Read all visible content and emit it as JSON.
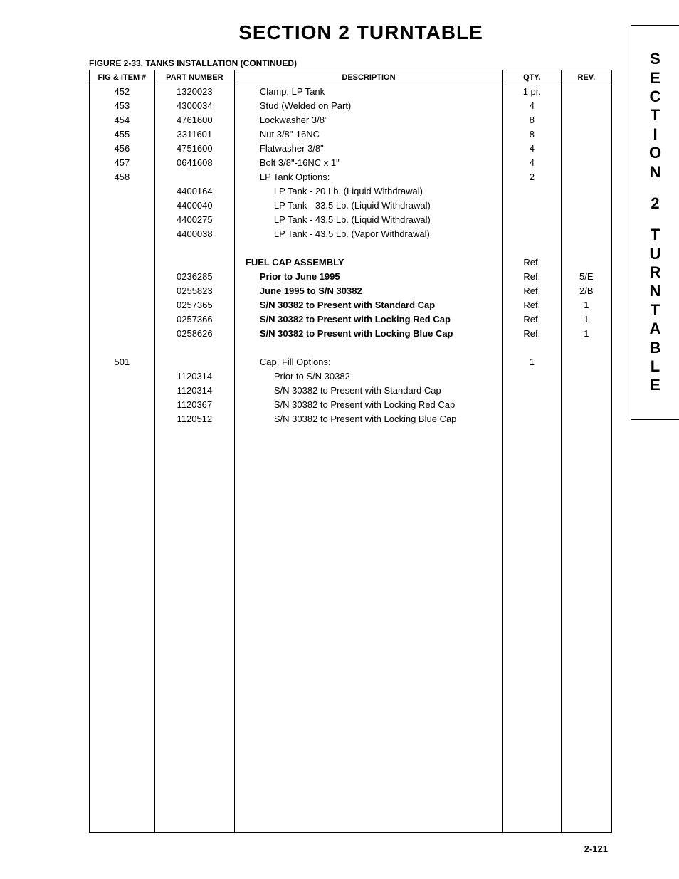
{
  "page": {
    "section_title": "SECTION 2   TURNTABLE",
    "figure_caption": "FIGURE 2-33.  TANKS INSTALLATION (CONTINUED)",
    "page_number": "2-121",
    "side_tab": [
      "S",
      "E",
      "C",
      "T",
      "I",
      "O",
      "N",
      "",
      "2",
      "",
      "T",
      "U",
      "R",
      "N",
      "T",
      "A",
      "B",
      "L",
      "E"
    ]
  },
  "table": {
    "headers": {
      "fig": "Fig & Item #",
      "part": "Part Number",
      "desc": "Description",
      "qty": "Qty.",
      "rev": "Rev."
    },
    "rows": [
      {
        "fig": "452",
        "part": "1320023",
        "desc": "Clamp, LP Tank",
        "indent": 1,
        "bold": false,
        "qty": "1 pr.",
        "rev": ""
      },
      {
        "fig": "453",
        "part": "4300034",
        "desc": "Stud (Welded on Part)",
        "indent": 1,
        "bold": false,
        "qty": "4",
        "rev": ""
      },
      {
        "fig": "454",
        "part": "4761600",
        "desc": "Lockwasher 3/8\"",
        "indent": 1,
        "bold": false,
        "qty": "8",
        "rev": ""
      },
      {
        "fig": "455",
        "part": "3311601",
        "desc": "Nut 3/8\"-16NC",
        "indent": 1,
        "bold": false,
        "qty": "8",
        "rev": ""
      },
      {
        "fig": "456",
        "part": "4751600",
        "desc": "Flatwasher 3/8\"",
        "indent": 1,
        "bold": false,
        "qty": "4",
        "rev": ""
      },
      {
        "fig": "457",
        "part": "0641608",
        "desc": "Bolt 3/8\"-16NC x 1\"",
        "indent": 1,
        "bold": false,
        "qty": "4",
        "rev": ""
      },
      {
        "fig": "458",
        "part": "",
        "desc": "LP Tank Options:",
        "indent": 1,
        "bold": false,
        "qty": "2",
        "rev": ""
      },
      {
        "fig": "",
        "part": "4400164",
        "desc": "LP Tank - 20 Lb. (Liquid Withdrawal)",
        "indent": 2,
        "bold": false,
        "qty": "",
        "rev": ""
      },
      {
        "fig": "",
        "part": "4400040",
        "desc": "LP Tank - 33.5 Lb. (Liquid Withdrawal)",
        "indent": 2,
        "bold": false,
        "qty": "",
        "rev": ""
      },
      {
        "fig": "",
        "part": "4400275",
        "desc": "LP Tank - 43.5 Lb. (Liquid Withdrawal)",
        "indent": 2,
        "bold": false,
        "qty": "",
        "rev": ""
      },
      {
        "fig": "",
        "part": "4400038",
        "desc": "LP Tank - 43.5 Lb. (Vapor Withdrawal)",
        "indent": 2,
        "bold": false,
        "qty": "",
        "rev": ""
      },
      {
        "spacer": true
      },
      {
        "fig": "",
        "part": "",
        "desc": "FUEL CAP ASSEMBLY",
        "indent": 0,
        "bold": true,
        "qty": "Ref.",
        "rev": ""
      },
      {
        "fig": "",
        "part": "0236285",
        "desc": "Prior to June 1995",
        "indent": 1,
        "bold": true,
        "qty": "Ref.",
        "rev": "5/E"
      },
      {
        "fig": "",
        "part": "0255823",
        "desc": "June 1995 to S/N 30382",
        "indent": 1,
        "bold": true,
        "qty": "Ref.",
        "rev": "2/B"
      },
      {
        "fig": "",
        "part": "0257365",
        "desc": "S/N 30382 to Present with Standard Cap",
        "indent": 1,
        "bold": true,
        "qty": "Ref.",
        "rev": "1"
      },
      {
        "fig": "",
        "part": "0257366",
        "desc": "S/N 30382 to Present with Locking Red Cap",
        "indent": 1,
        "bold": true,
        "qty": "Ref.",
        "rev": "1"
      },
      {
        "fig": "",
        "part": "0258626",
        "desc": "S/N 30382 to Present with Locking Blue Cap",
        "indent": 1,
        "bold": true,
        "qty": "Ref.",
        "rev": "1"
      },
      {
        "spacer": true
      },
      {
        "fig": "501",
        "part": "",
        "desc": "Cap, Fill Options:",
        "indent": 1,
        "bold": false,
        "qty": "1",
        "rev": ""
      },
      {
        "fig": "",
        "part": "1120314",
        "desc": "Prior to S/N 30382",
        "indent": 2,
        "bold": false,
        "qty": "",
        "rev": ""
      },
      {
        "fig": "",
        "part": "1120314",
        "desc": "S/N 30382 to Present with Standard Cap",
        "indent": 2,
        "bold": false,
        "qty": "",
        "rev": ""
      },
      {
        "fig": "",
        "part": "1120367",
        "desc": "S/N 30382 to Present with Locking Red Cap",
        "indent": 2,
        "bold": false,
        "qty": "",
        "rev": ""
      },
      {
        "fig": "",
        "part": "1120512",
        "desc": "S/N 30382 to Present with Locking Blue Cap",
        "indent": 2,
        "bold": false,
        "qty": "",
        "rev": ""
      }
    ]
  }
}
